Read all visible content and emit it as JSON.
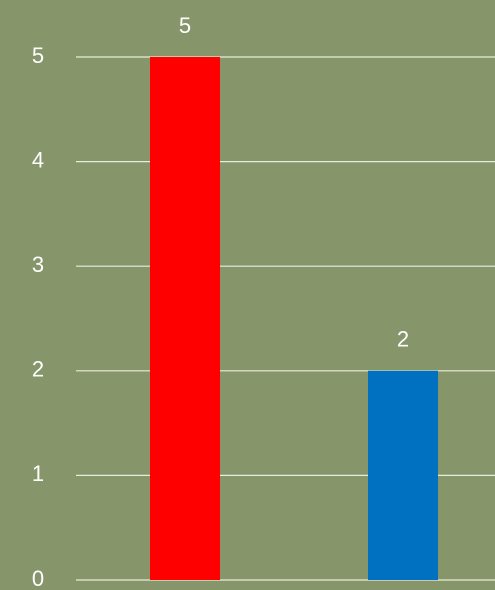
{
  "chart_data": {
    "type": "bar",
    "categories": [
      null,
      null
    ],
    "values": [
      5,
      2
    ],
    "colors": [
      "#ff0000",
      "#0070c0"
    ],
    "ylim": [
      0,
      5
    ],
    "yticks": [
      0,
      1,
      2,
      3,
      4,
      5
    ],
    "grid": true
  }
}
